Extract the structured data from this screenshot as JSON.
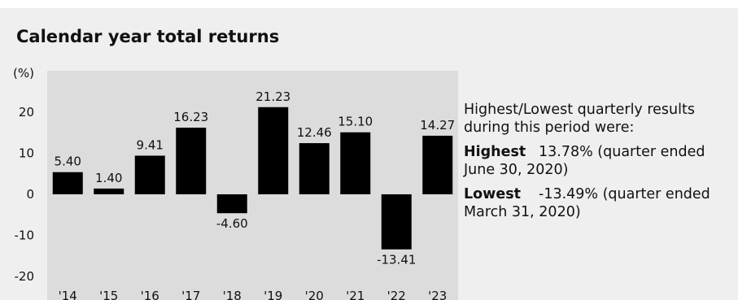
{
  "header": {
    "title": "Calendar year total returns"
  },
  "summary": {
    "intro": "Highest/Lowest quarterly results during this period were:",
    "highest_label": "Highest",
    "highest_value": "13.78% (quarter ended June 30, 2020)",
    "lowest_label": "Lowest",
    "lowest_value": "-13.49% (quarter ended March 31, 2020)"
  },
  "chart_data": {
    "type": "bar",
    "title": "Calendar year total returns",
    "ylabel": "(%)",
    "categories": [
      "'14",
      "'15",
      "'16",
      "'17",
      "'18",
      "'19",
      "'20",
      "'21",
      "'22",
      "'23"
    ],
    "values": [
      5.4,
      1.4,
      9.41,
      16.23,
      -4.6,
      21.23,
      12.46,
      15.1,
      -13.41,
      14.27
    ],
    "value_labels": [
      "5.40",
      "1.40",
      "9.41",
      "16.23",
      "-4.60",
      "21.23",
      "12.46",
      "15.10",
      "-13.41",
      "14.27"
    ],
    "ylim": [
      -20,
      30
    ],
    "yticks": [
      -20,
      -10,
      0,
      10,
      20
    ],
    "grid": false,
    "colors": {
      "bar": "#000000",
      "plot_bg": "#dcdcdc"
    }
  }
}
